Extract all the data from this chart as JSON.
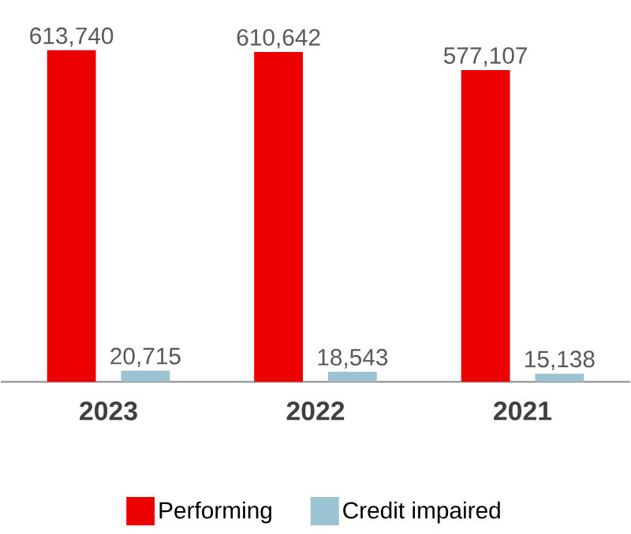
{
  "chart_data": {
    "type": "bar",
    "categories": [
      "2023",
      "2022",
      "2021"
    ],
    "series": [
      {
        "name": "Performing",
        "color": "#ec0000",
        "values": [
          613740,
          610642,
          577107
        ],
        "value_labels": [
          "613,740",
          "610,642",
          "577,107"
        ]
      },
      {
        "name": "Credit impaired",
        "color": "#9cc3d2",
        "values": [
          20715,
          18543,
          15138
        ],
        "value_labels": [
          "20,715",
          "18,543",
          "15,138"
        ]
      }
    ],
    "legend": "bottom"
  }
}
